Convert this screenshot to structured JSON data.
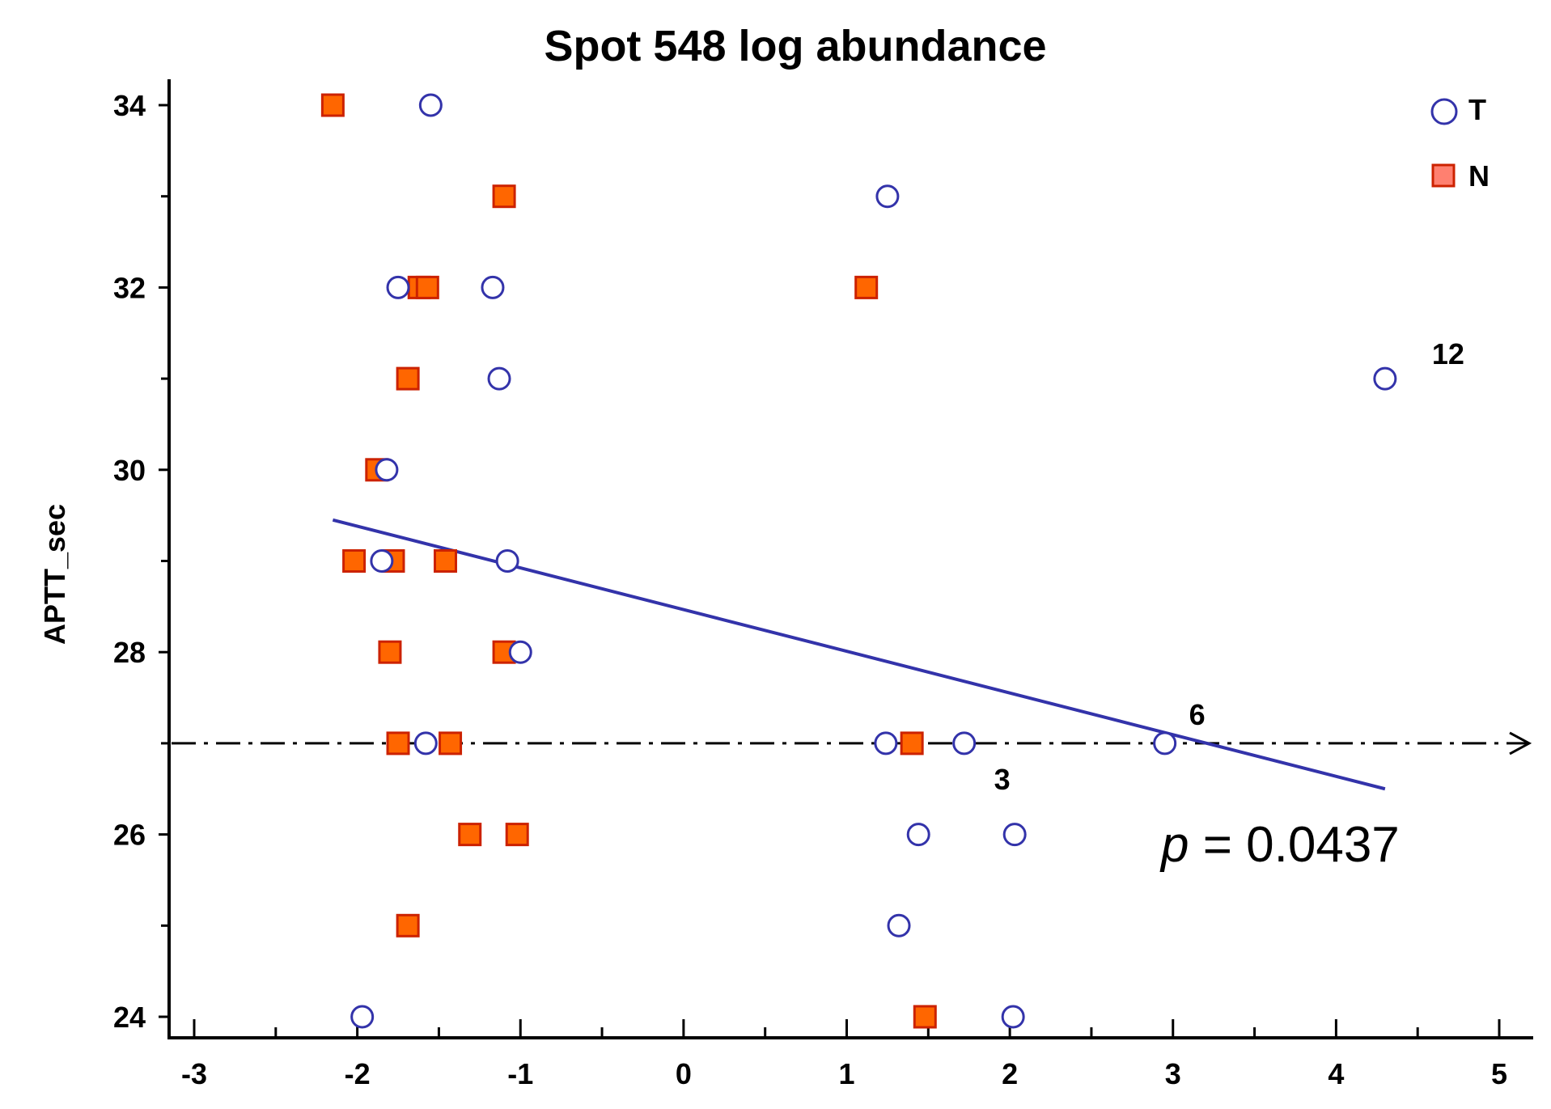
{
  "chart_data": {
    "type": "scatter",
    "title": "Spot 548 log abundance",
    "xlabel": "",
    "ylabel": "APTT_sec",
    "xlim": [
      -3,
      5
    ],
    "ylim": [
      24,
      34
    ],
    "x_ticks": [
      "-3",
      "-2",
      "-1",
      "0",
      "1",
      "2",
      "3",
      "4",
      "5"
    ],
    "y_ticks": [
      "24",
      "26",
      "28",
      "30",
      "32",
      "34"
    ],
    "legend": {
      "position": "top-right",
      "entries": [
        {
          "name": "T",
          "marker": "circle"
        },
        {
          "name": "N",
          "marker": "square"
        }
      ]
    },
    "series": [
      {
        "name": "T",
        "marker": "circle",
        "color": "#3333aa",
        "points": [
          {
            "x": -1.55,
            "y": 34
          },
          {
            "x": 1.25,
            "y": 33
          },
          {
            "x": -1.75,
            "y": 32
          },
          {
            "x": -1.17,
            "y": 32
          },
          {
            "x": -1.13,
            "y": 31
          },
          {
            "x": 4.3,
            "y": 31
          },
          {
            "x": -1.82,
            "y": 30
          },
          {
            "x": -1.85,
            "y": 29
          },
          {
            "x": -1.08,
            "y": 29
          },
          {
            "x": -1.0,
            "y": 28
          },
          {
            "x": -1.58,
            "y": 27
          },
          {
            "x": 1.24,
            "y": 27
          },
          {
            "x": 1.72,
            "y": 27
          },
          {
            "x": 2.95,
            "y": 27
          },
          {
            "x": 1.44,
            "y": 26
          },
          {
            "x": 2.03,
            "y": 26
          },
          {
            "x": 1.32,
            "y": 25
          },
          {
            "x": -1.97,
            "y": 24
          },
          {
            "x": 2.02,
            "y": 24
          }
        ]
      },
      {
        "name": "N",
        "marker": "square",
        "color": "#ff6600",
        "border": "#cc2200",
        "points": [
          {
            "x": -2.15,
            "y": 34
          },
          {
            "x": -1.1,
            "y": 33
          },
          {
            "x": -1.62,
            "y": 32
          },
          {
            "x": -1.57,
            "y": 32
          },
          {
            "x": 1.12,
            "y": 32
          },
          {
            "x": -1.69,
            "y": 31
          },
          {
            "x": -1.88,
            "y": 30
          },
          {
            "x": -2.02,
            "y": 29
          },
          {
            "x": -1.78,
            "y": 29
          },
          {
            "x": -1.46,
            "y": 29
          },
          {
            "x": -1.8,
            "y": 28
          },
          {
            "x": -1.1,
            "y": 28
          },
          {
            "x": -1.75,
            "y": 27
          },
          {
            "x": -1.43,
            "y": 27
          },
          {
            "x": 1.4,
            "y": 27
          },
          {
            "x": -1.31,
            "y": 26
          },
          {
            "x": -1.02,
            "y": 26
          },
          {
            "x": -1.69,
            "y": 25
          },
          {
            "x": 1.48,
            "y": 24
          }
        ]
      }
    ],
    "regression_line": {
      "color": "#3333aa",
      "x": [
        -2.15,
        4.3
      ],
      "y": [
        29.45,
        26.5
      ]
    },
    "reference_line": {
      "y": 27,
      "style": "dash-dot",
      "arrow": true
    },
    "annotations": [
      {
        "text": "12",
        "x": 4.3,
        "y": 31
      },
      {
        "text": "6",
        "x": 2.95,
        "y": 27
      },
      {
        "text": "3",
        "x": 1.72,
        "y": 27
      }
    ],
    "p_value": {
      "prefix": "p",
      "text": " = 0.0437"
    },
    "grid": false
  }
}
